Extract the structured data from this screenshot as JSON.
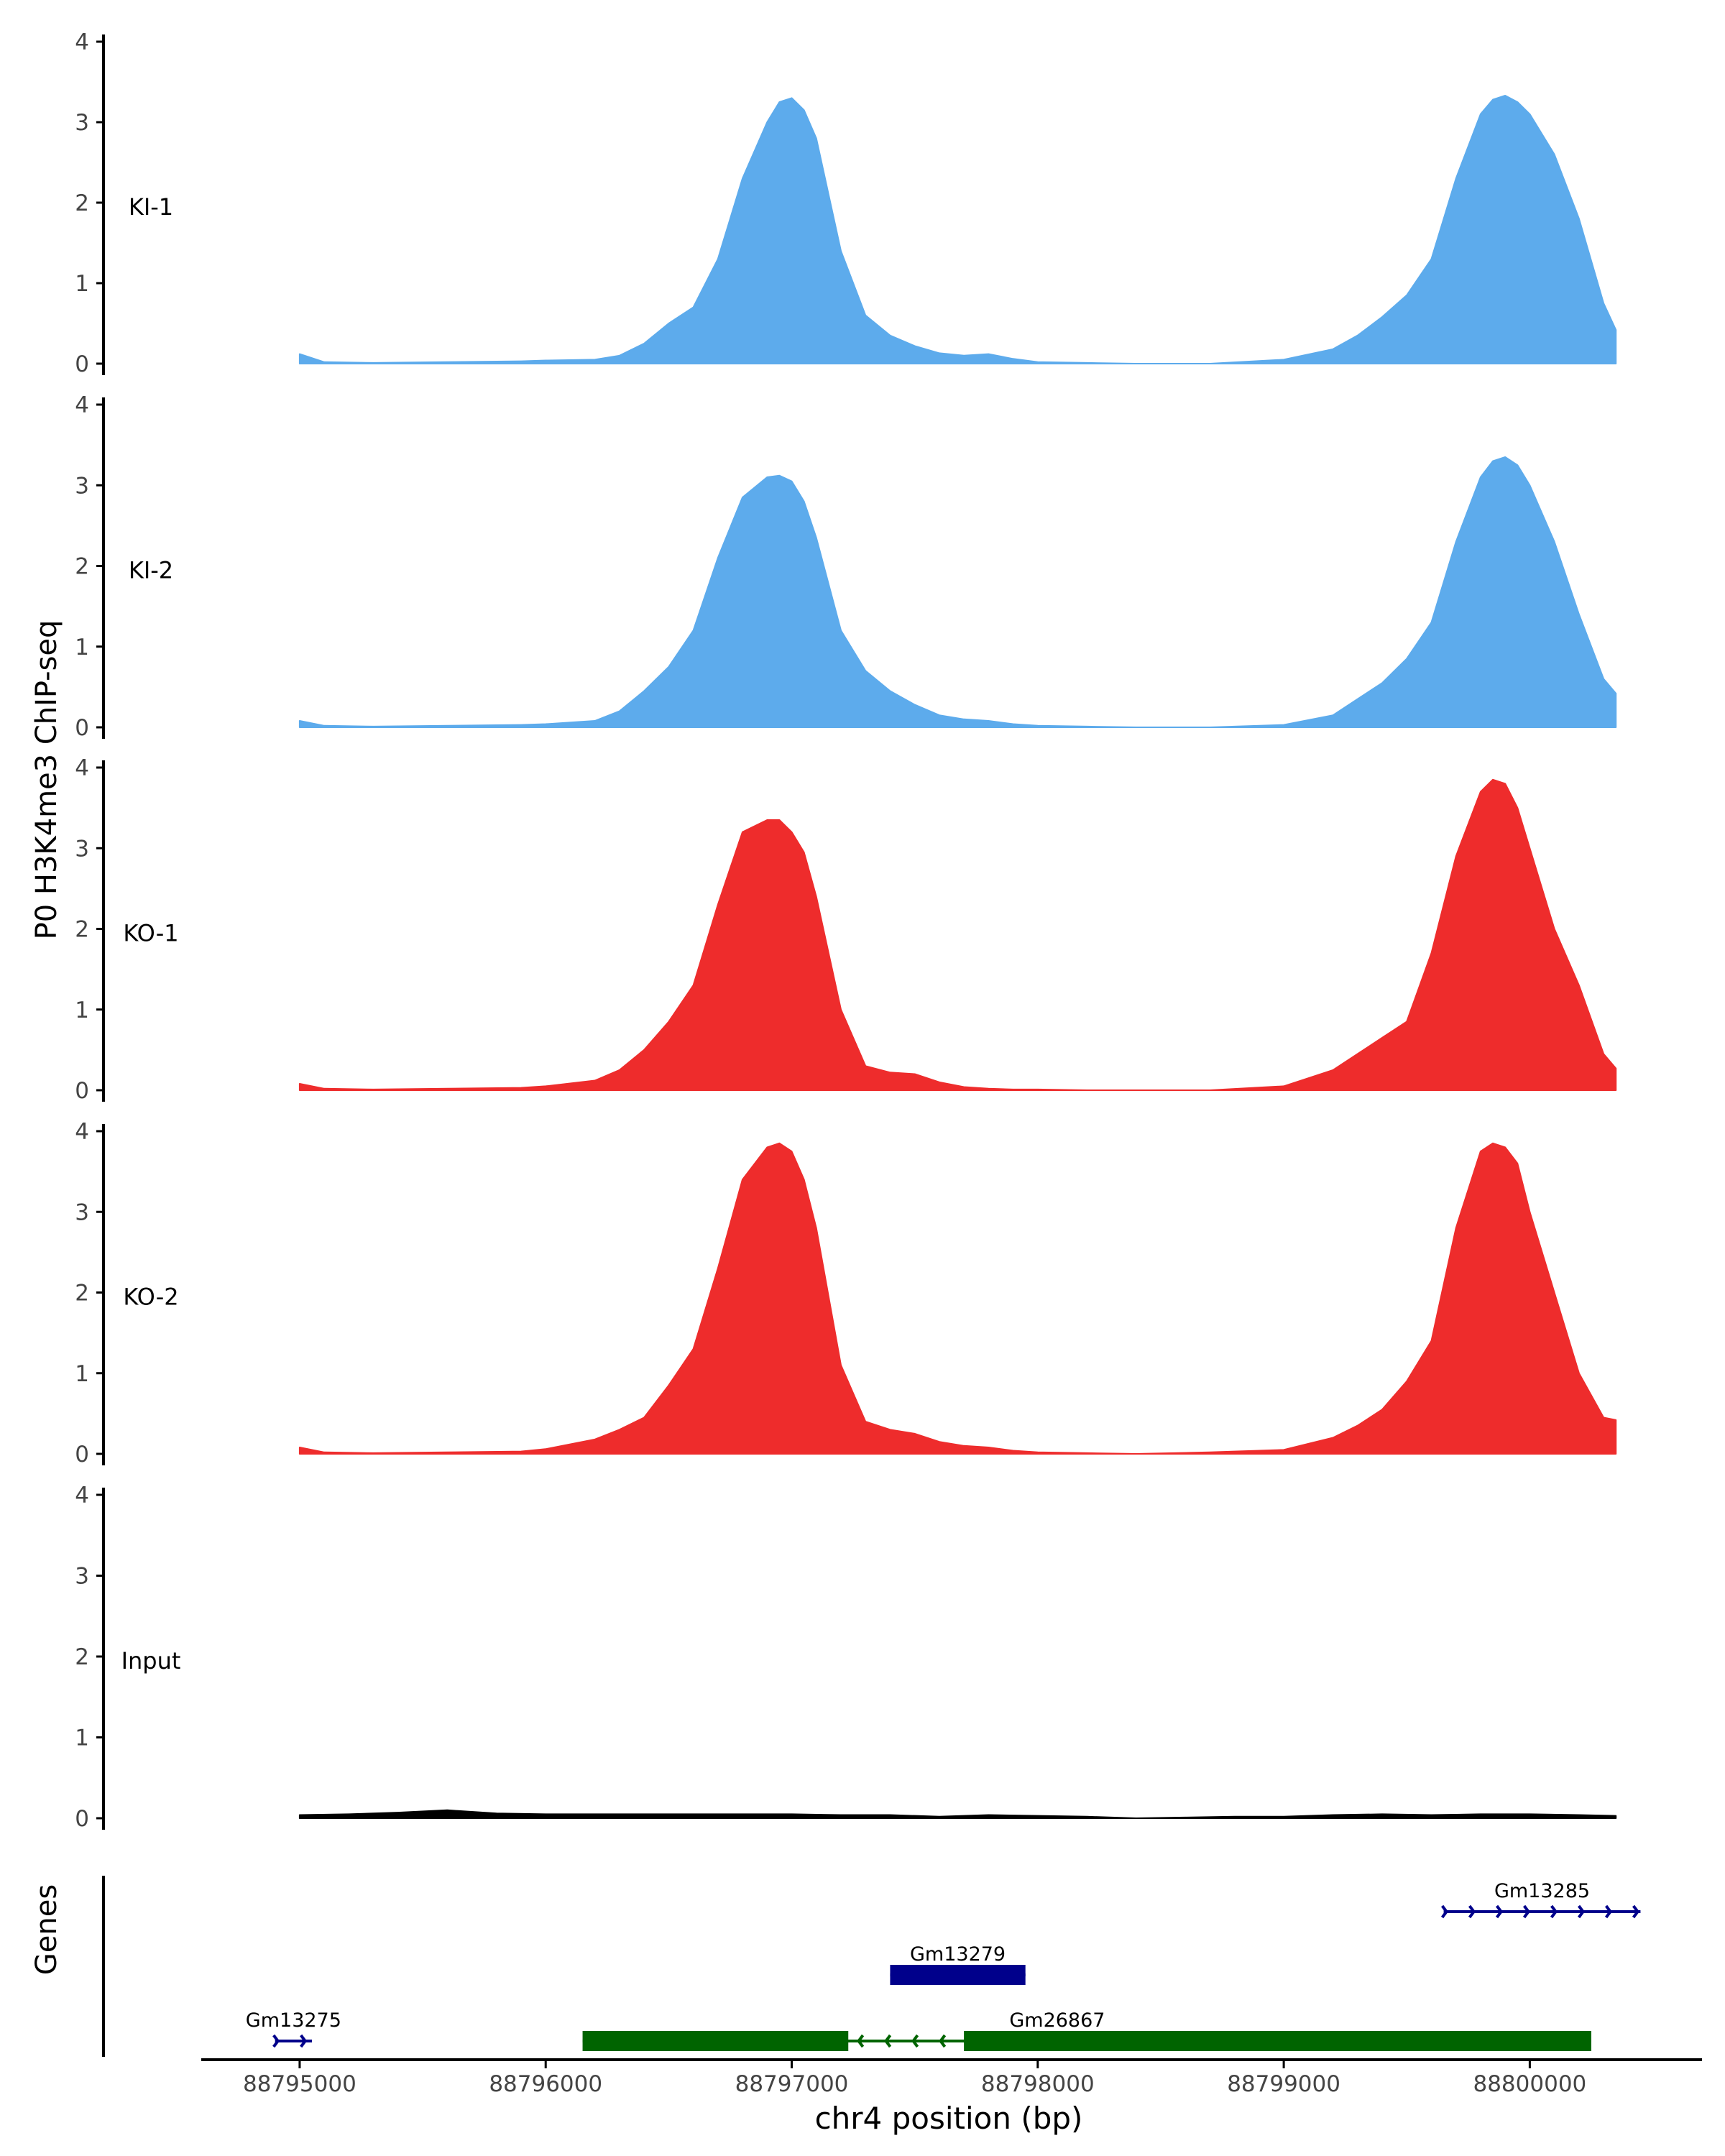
{
  "figure": {
    "ylabel": "P0 H3K4me3 ChIP-seq",
    "genes_label": "Genes",
    "xlabel": "chr4 position (bp)"
  },
  "chart_data": {
    "type": "area",
    "title": "",
    "xlabel": "chr4 position (bp)",
    "ylabel": "P0 H3K4me3 ChIP-seq",
    "xlim": [
      88794600,
      88800700
    ],
    "x_ticks": [
      88795000,
      88796000,
      88797000,
      88798000,
      88799000,
      88800000
    ],
    "x_tick_labels": [
      "88795000",
      "88796000",
      "88797000",
      "88798000",
      "88799000",
      "88800000"
    ],
    "y_ticks": [
      0,
      1,
      2,
      3,
      4
    ],
    "y_tick_labels": [
      "0",
      "1",
      "2",
      "3",
      "4"
    ],
    "ylim": [
      0,
      4
    ],
    "tracks": [
      {
        "name": "KI-1",
        "color": "#5DABEC",
        "x": [
          88795000,
          88795100,
          88795300,
          88795600,
          88795900,
          88796000,
          88796200,
          88796300,
          88796400,
          88796500,
          88796600,
          88796700,
          88796800,
          88796900,
          88796950,
          88797000,
          88797050,
          88797100,
          88797200,
          88797300,
          88797400,
          88797500,
          88797600,
          88797700,
          88797800,
          88797900,
          88798000,
          88798200,
          88798400,
          88798700,
          88799000,
          88799200,
          88799300,
          88799400,
          88799500,
          88799600,
          88799700,
          88799800,
          88799850,
          88799900,
          88799950,
          88800000,
          88800100,
          88800200,
          88800300,
          88800350
        ],
        "y": [
          0.12,
          0.02,
          0.01,
          0.02,
          0.03,
          0.04,
          0.05,
          0.1,
          0.25,
          0.5,
          0.7,
          1.3,
          2.3,
          3.0,
          3.25,
          3.3,
          3.15,
          2.8,
          1.4,
          0.6,
          0.35,
          0.22,
          0.13,
          0.1,
          0.12,
          0.06,
          0.02,
          0.01,
          0.0,
          0.0,
          0.05,
          0.18,
          0.35,
          0.58,
          0.85,
          1.3,
          2.3,
          3.1,
          3.28,
          3.33,
          3.25,
          3.1,
          2.6,
          1.8,
          0.75,
          0.42
        ]
      },
      {
        "name": "KI-2",
        "color": "#5DABEC",
        "x": [
          88795000,
          88795100,
          88795300,
          88795600,
          88795900,
          88796000,
          88796200,
          88796300,
          88796400,
          88796500,
          88796600,
          88796700,
          88796800,
          88796900,
          88796950,
          88797000,
          88797050,
          88797100,
          88797200,
          88797300,
          88797400,
          88797500,
          88797600,
          88797700,
          88797800,
          88797900,
          88798000,
          88798200,
          88798400,
          88798700,
          88799000,
          88799200,
          88799300,
          88799400,
          88799500,
          88799600,
          88799700,
          88799800,
          88799850,
          88799900,
          88799950,
          88800000,
          88800100,
          88800200,
          88800300,
          88800350
        ],
        "y": [
          0.08,
          0.02,
          0.01,
          0.02,
          0.03,
          0.04,
          0.08,
          0.2,
          0.45,
          0.75,
          1.2,
          2.1,
          2.85,
          3.1,
          3.12,
          3.05,
          2.8,
          2.35,
          1.2,
          0.7,
          0.45,
          0.28,
          0.15,
          0.1,
          0.08,
          0.04,
          0.02,
          0.01,
          0.0,
          0.0,
          0.03,
          0.15,
          0.35,
          0.55,
          0.85,
          1.3,
          2.3,
          3.1,
          3.3,
          3.35,
          3.25,
          3.0,
          2.3,
          1.4,
          0.6,
          0.42
        ]
      },
      {
        "name": "KO-1",
        "color": "#EE2C2C",
        "x": [
          88795000,
          88795100,
          88795300,
          88795600,
          88795900,
          88796000,
          88796200,
          88796300,
          88796400,
          88796500,
          88796600,
          88796700,
          88796800,
          88796900,
          88796950,
          88797000,
          88797050,
          88797100,
          88797200,
          88797300,
          88797400,
          88797500,
          88797600,
          88797700,
          88797800,
          88797900,
          88798000,
          88798200,
          88798400,
          88798700,
          88799000,
          88799200,
          88799300,
          88799400,
          88799500,
          88799600,
          88799700,
          88799800,
          88799850,
          88799900,
          88799950,
          88800000,
          88800100,
          88800200,
          88800300,
          88800350
        ],
        "y": [
          0.08,
          0.02,
          0.01,
          0.02,
          0.03,
          0.05,
          0.12,
          0.25,
          0.5,
          0.85,
          1.3,
          2.3,
          3.2,
          3.35,
          3.35,
          3.2,
          2.95,
          2.4,
          1.0,
          0.3,
          0.22,
          0.2,
          0.1,
          0.04,
          0.02,
          0.01,
          0.01,
          0.0,
          0.0,
          0.0,
          0.05,
          0.25,
          0.45,
          0.65,
          0.85,
          1.7,
          2.9,
          3.7,
          3.85,
          3.8,
          3.5,
          3.0,
          2.0,
          1.3,
          0.45,
          0.27
        ]
      },
      {
        "name": "KO-2",
        "color": "#EE2C2C",
        "x": [
          88795000,
          88795100,
          88795300,
          88795600,
          88795900,
          88796000,
          88796200,
          88796300,
          88796400,
          88796500,
          88796600,
          88796700,
          88796800,
          88796900,
          88796950,
          88797000,
          88797050,
          88797100,
          88797200,
          88797300,
          88797400,
          88797500,
          88797600,
          88797700,
          88797800,
          88797900,
          88798000,
          88798200,
          88798400,
          88798700,
          88799000,
          88799200,
          88799300,
          88799400,
          88799500,
          88799600,
          88799700,
          88799800,
          88799850,
          88799900,
          88799950,
          88800000,
          88800100,
          88800200,
          88800300,
          88800350
        ],
        "y": [
          0.08,
          0.02,
          0.01,
          0.02,
          0.03,
          0.06,
          0.18,
          0.3,
          0.45,
          0.85,
          1.3,
          2.3,
          3.4,
          3.8,
          3.85,
          3.75,
          3.4,
          2.8,
          1.1,
          0.4,
          0.3,
          0.25,
          0.15,
          0.1,
          0.08,
          0.04,
          0.02,
          0.01,
          0.0,
          0.02,
          0.05,
          0.2,
          0.35,
          0.55,
          0.9,
          1.4,
          2.8,
          3.75,
          3.85,
          3.8,
          3.6,
          3.0,
          2.0,
          1.0,
          0.45,
          0.42
        ]
      },
      {
        "name": "Input",
        "color": "#000000",
        "x": [
          88795000,
          88795200,
          88795400,
          88795600,
          88795800,
          88796000,
          88796200,
          88796400,
          88796600,
          88796800,
          88797000,
          88797200,
          88797400,
          88797600,
          88797800,
          88798000,
          88798200,
          88798400,
          88798600,
          88798800,
          88799000,
          88799200,
          88799400,
          88799600,
          88799800,
          88800000,
          88800200,
          88800350
        ],
        "y": [
          0.04,
          0.05,
          0.07,
          0.1,
          0.06,
          0.05,
          0.05,
          0.05,
          0.05,
          0.05,
          0.05,
          0.04,
          0.04,
          0.02,
          0.04,
          0.03,
          0.02,
          0.0,
          0.01,
          0.02,
          0.02,
          0.04,
          0.05,
          0.04,
          0.05,
          0.05,
          0.04,
          0.03
        ]
      }
    ],
    "genes": [
      {
        "name": "Gm13285",
        "start": 88799650,
        "end": 88800450,
        "strand": "+",
        "color": "#00008B",
        "row": 3,
        "exons": []
      },
      {
        "name": "Gm13279",
        "start": 88797400,
        "end": 88797950,
        "strand": "-",
        "color": "#00008B",
        "row": 2,
        "exons": [
          [
            88797400,
            88797950
          ]
        ]
      },
      {
        "name": "Gm13275",
        "start": 88794900,
        "end": 88795050,
        "strand": "+",
        "color": "#00008B",
        "row": 1,
        "exons": []
      },
      {
        "name": "Gm26867",
        "start": 88796150,
        "end": 88800250,
        "strand": "-",
        "color": "#006400",
        "row": 1,
        "exons": [
          [
            88796150,
            88797230
          ],
          [
            88797700,
            88800250
          ]
        ]
      }
    ]
  }
}
